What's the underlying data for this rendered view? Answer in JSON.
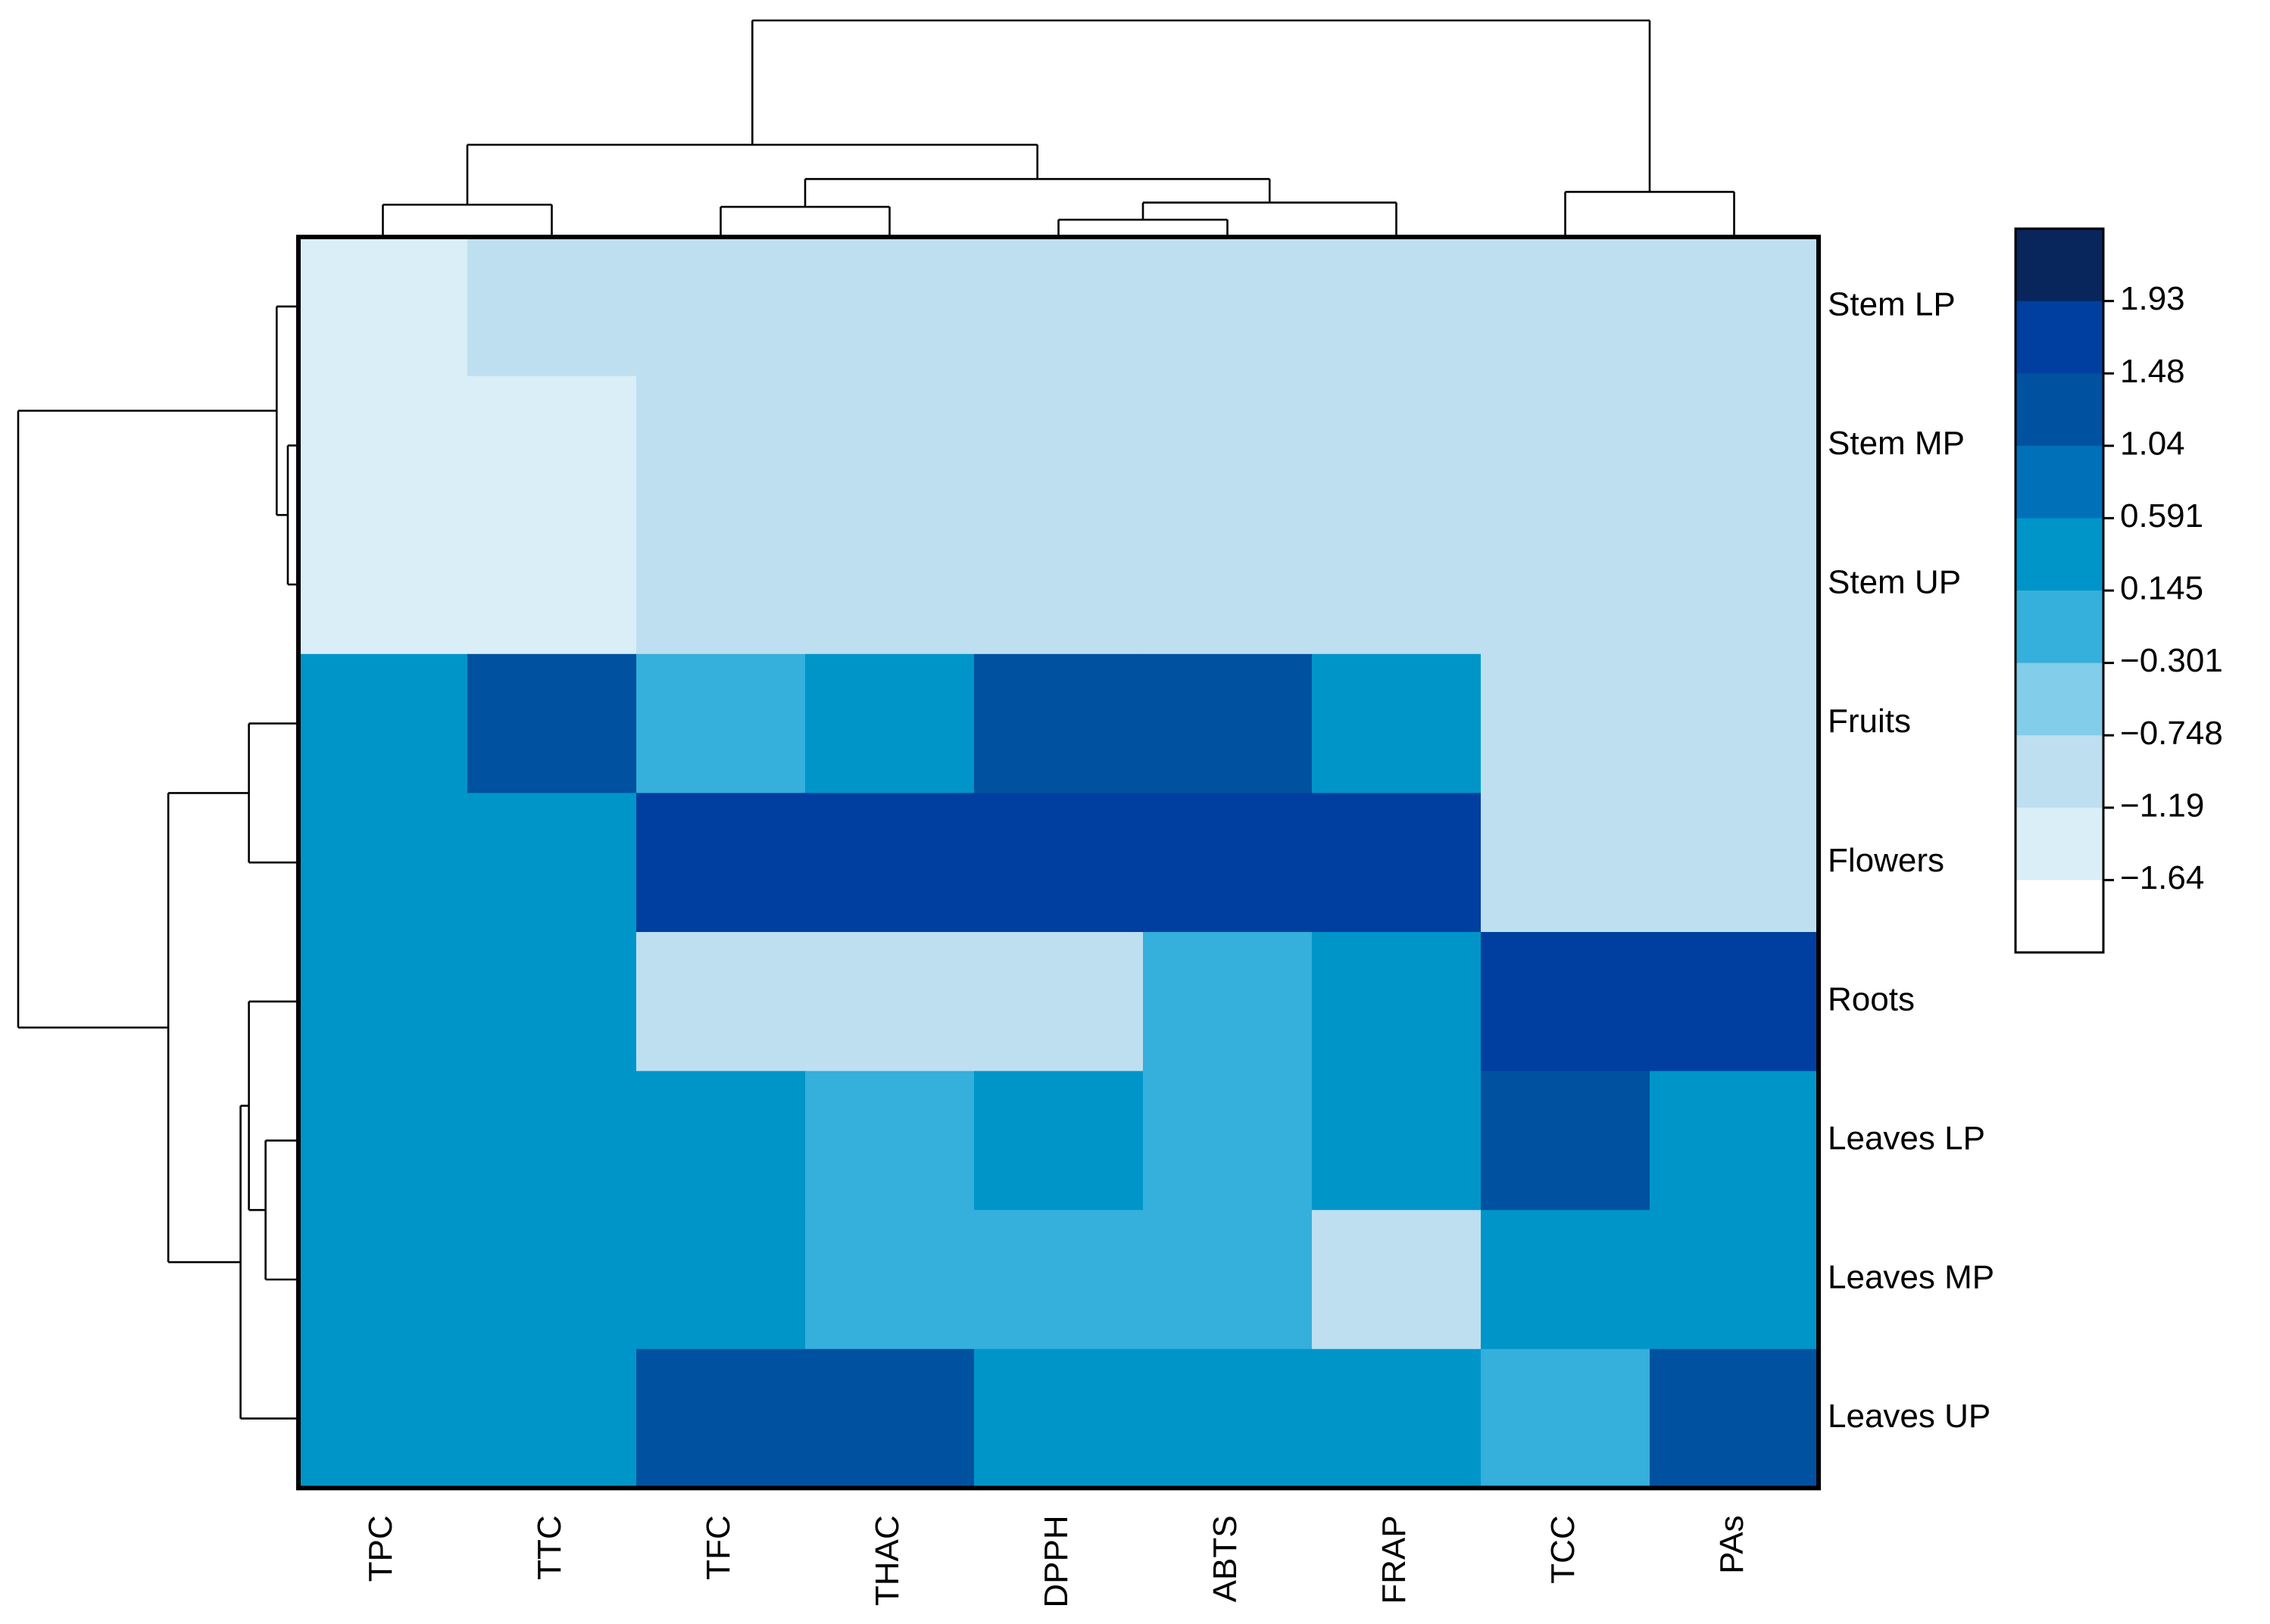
{
  "chart_data": {
    "type": "heatmap",
    "title": "",
    "xlabel": "",
    "ylabel": "",
    "columns": [
      "TPC",
      "TTC",
      "TFC",
      "THAC",
      "DPPH",
      "ABTS",
      "FRAP",
      "TCC",
      "PAs"
    ],
    "rows": [
      "Stem LP",
      "Stem MP",
      "Stem UP",
      "Fruits",
      "Flowers",
      "Roots",
      "Leaves LP",
      "Leaves MP",
      "Leaves UP"
    ],
    "values": [
      [
        -1.64,
        -0.75,
        -1.19,
        -1.19,
        -1.19,
        -1.19,
        -1.19,
        -0.75,
        -1.19
      ],
      [
        -1.64,
        -1.64,
        -1.19,
        -1.19,
        -1.19,
        -1.19,
        -1.19,
        -0.75,
        -1.19
      ],
      [
        -1.64,
        -1.64,
        -1.19,
        -1.19,
        -1.19,
        -1.19,
        -1.19,
        -1.19,
        -1.19
      ],
      [
        0.59,
        1.04,
        -0.3,
        0.59,
        1.04,
        1.04,
        0.59,
        -0.75,
        -0.75
      ],
      [
        0.59,
        0.15,
        1.48,
        1.48,
        1.48,
        1.48,
        1.48,
        -1.19,
        -0.75
      ],
      [
        0.15,
        0.59,
        -1.19,
        -1.19,
        -0.75,
        -0.3,
        0.15,
        1.48,
        1.48
      ],
      [
        0.59,
        0.59,
        0.15,
        -0.3,
        0.15,
        -0.3,
        0.59,
        1.04,
        0.59
      ],
      [
        0.15,
        0.15,
        0.15,
        -0.3,
        -0.3,
        -0.3,
        -0.75,
        0.59,
        0.15
      ],
      [
        0.59,
        0.15,
        1.04,
        1.04,
        0.15,
        0.59,
        0.15,
        -0.3,
        1.04
      ]
    ],
    "color_scale": {
      "ticks": [
        "1.93",
        "1.48",
        "1.04",
        "0.591",
        "0.145",
        "−0.301",
        "−0.748",
        "−1.19",
        "−1.64"
      ],
      "tick_values": [
        1.93,
        1.48,
        1.04,
        0.591,
        0.145,
        -0.301,
        -0.748,
        -1.19,
        -1.64
      ],
      "bins": [
        {
          "min": 1.93,
          "max": 2.37,
          "color": "#08255c"
        },
        {
          "min": 1.48,
          "max": 1.93,
          "color": "#003f9f"
        },
        {
          "min": 1.04,
          "max": 1.48,
          "color": "#0051a0"
        },
        {
          "min": 0.591,
          "max": 1.04,
          "color": "#0071b8"
        },
        {
          "min": 0.145,
          "max": 0.591,
          "color": "#0095c8"
        },
        {
          "min": -0.301,
          "max": 0.145,
          "color": "#35afdb"
        },
        {
          "min": -0.748,
          "max": -0.301,
          "color": "#82cde9"
        },
        {
          "min": -1.19,
          "max": -0.748,
          "color": "#bedff0"
        },
        {
          "min": -1.64,
          "max": -1.19,
          "color": "#d9eef7"
        },
        {
          "min": -2.09,
          "max": -1.64,
          "color": "#ffffff"
        }
      ]
    },
    "column_dendrogram": {
      "leaf_order": [
        "TPC",
        "TTC",
        "TFC",
        "THAC",
        "DPPH",
        "ABTS",
        "FRAP",
        "TCC",
        "PAs"
      ],
      "merges": [
        {
          "left": "DPPH",
          "right": "ABTS",
          "height": 0.07
        },
        {
          "left": "[DPPH,ABTS]",
          "right": "FRAP",
          "height": 0.15
        },
        {
          "left": "TFC",
          "right": "THAC",
          "height": 0.13
        },
        {
          "left": "[TFC,THAC]",
          "right": "[DPPH,ABTS,FRAP]",
          "height": 0.26
        },
        {
          "left": "TPC",
          "right": "TTC",
          "height": 0.14
        },
        {
          "left": "TCC",
          "right": "PAs",
          "height": 0.2
        },
        {
          "left": "[TPC,TTC]",
          "right": "[TFC,THAC,DPPH,ABTS,FRAP]",
          "height": 0.42
        },
        {
          "left": "[TPC,TTC,TFC,THAC,DPPH,ABTS,FRAP]",
          "right": "[TCC,PAs]",
          "height": 1.0
        }
      ]
    },
    "row_dendrogram": {
      "leaf_order": [
        "Stem LP",
        "Stem MP",
        "Stem UP",
        "Fruits",
        "Flowers",
        "Roots",
        "Leaves LP",
        "Leaves MP",
        "Leaves UP"
      ],
      "merges": [
        {
          "left": "Stem MP",
          "right": "Stem UP",
          "height": 0.03
        },
        {
          "left": "Stem LP",
          "right": "[Stem MP,Stem UP]",
          "height": 0.07
        },
        {
          "left": "Leaves LP",
          "right": "Leaves MP",
          "height": 0.11
        },
        {
          "left": "Roots",
          "right": "[Leaves LP,Leaves MP]",
          "height": 0.17
        },
        {
          "left": "[Roots,Leaves LP,Leaves MP]",
          "right": "Leaves UP",
          "height": 0.2
        },
        {
          "left": "Fruits",
          "right": "Flowers",
          "height": 0.17
        },
        {
          "left": "[Fruits,Flowers]",
          "right": "[Roots,Leaves LP,Leaves MP,Leaves UP]",
          "height": 0.46
        },
        {
          "left": "[Stem LP,Stem MP,Stem UP]",
          "right": "[Fruits,Flowers,Roots,Leaves LP,Leaves MP,Leaves UP]",
          "height": 1.0
        }
      ]
    }
  }
}
